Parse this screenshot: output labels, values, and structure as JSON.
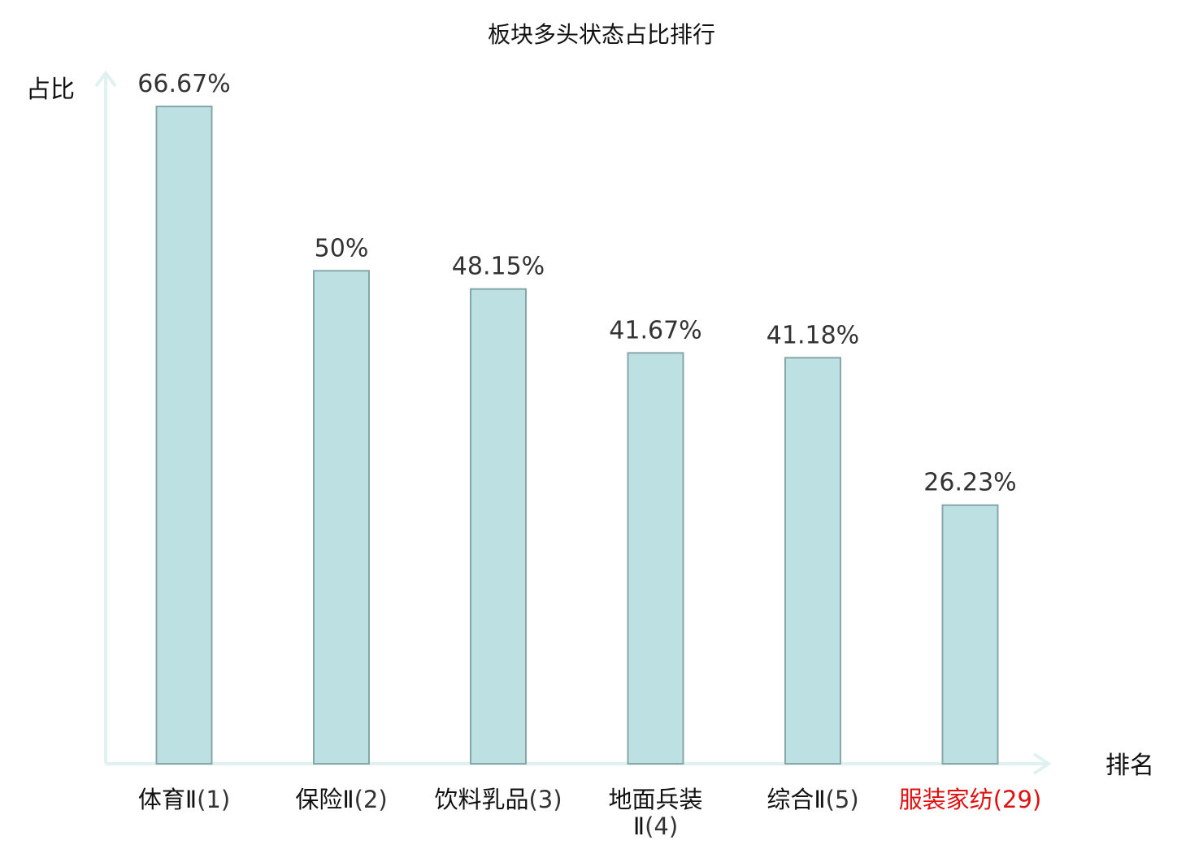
{
  "chart_data": {
    "type": "bar",
    "title": "板块多头状态占比排行",
    "ylabel": "占比",
    "xlabel": "排名",
    "ylim": [
      0,
      70
    ],
    "grid": false,
    "legend": "none",
    "categories": [
      {
        "name": "体育Ⅱ",
        "rank": "(1)",
        "highlight": false
      },
      {
        "name": "保险Ⅱ",
        "rank": "(2)",
        "highlight": false
      },
      {
        "name": "饮料乳品",
        "rank": "(3)",
        "highlight": false
      },
      {
        "name": "地面兵装Ⅱ",
        "rank": "(4)",
        "highlight": false
      },
      {
        "name": "综合Ⅱ",
        "rank": "(5)",
        "highlight": false
      },
      {
        "name": "服装家纺",
        "rank": "(29)",
        "highlight": true
      }
    ],
    "values": [
      66.67,
      50,
      48.15,
      41.67,
      41.18,
      26.23
    ],
    "value_labels": [
      "66.67%",
      "50%",
      "48.15%",
      "41.67%",
      "41.18%",
      "26.23%"
    ],
    "colors": {
      "bar_fill": "#bde0e3",
      "bar_stroke": "#86a7a9",
      "axis": "#e0f2ef",
      "label": "#111111",
      "rank": "#333333",
      "highlight": "#e01010"
    }
  }
}
